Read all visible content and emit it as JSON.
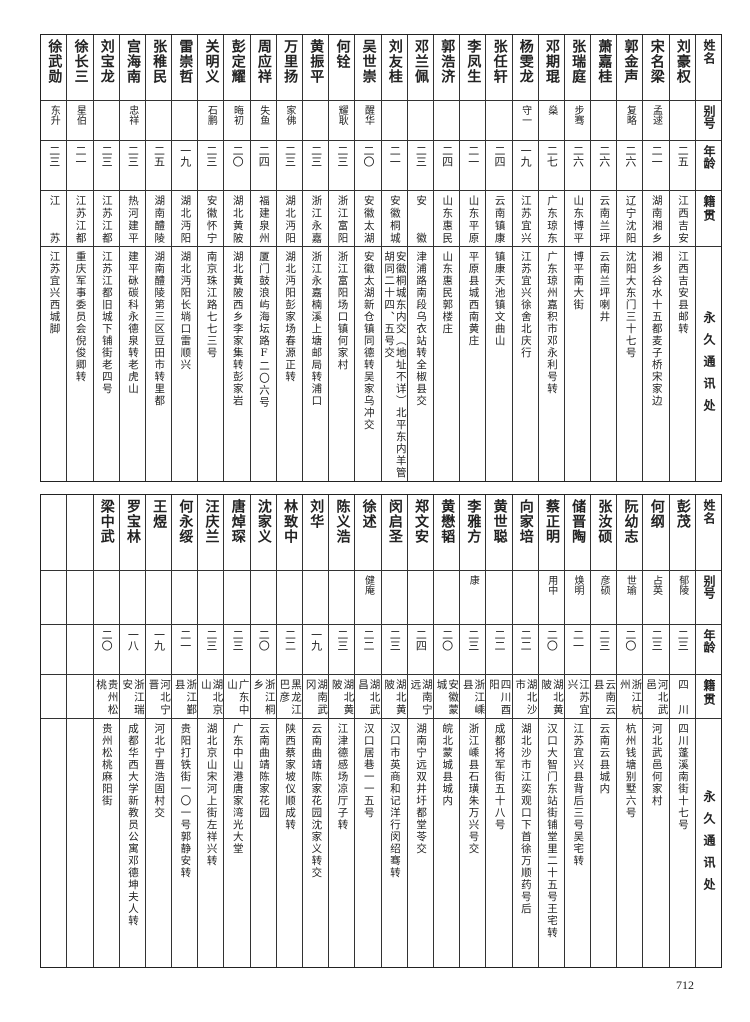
{
  "header": {
    "name": "姓名",
    "alias": "别号",
    "age": "年龄",
    "origin": "籍贯",
    "address": "永久通讯处"
  },
  "top_table": [
    {
      "name": "刘豪权",
      "alias": "",
      "age": "二五",
      "origin": "江西吉安",
      "address": "江西吉安县邮转"
    },
    {
      "name": "宋名梁",
      "alias": "孟逑",
      "age": "二一",
      "origin": "湖南湘乡",
      "address": "湘乡谷水十五都麦子桥宋家边"
    },
    {
      "name": "郭金声",
      "alias": "复略",
      "age": "二六",
      "origin": "辽宁沈阳",
      "address": "沈阳大东门三十七号"
    },
    {
      "name": "萧嘉桂",
      "alias": "",
      "age": "二六",
      "origin": "云南兰坪",
      "address": "云南兰坪喇井"
    },
    {
      "name": "张瑞庭",
      "alias": "步骞",
      "age": "二六",
      "origin": "山东博平",
      "address": "博平南大街"
    },
    {
      "name": "邓期琨",
      "alias": "燊",
      "age": "二七",
      "origin": "广东琼东",
      "address": "广东琼州嘉积市邓永利号转"
    },
    {
      "name": "杨雯龙",
      "alias": "守一",
      "age": "一九",
      "origin": "江苏宜兴",
      "address": "江苏宜兴徐舍北庆行"
    },
    {
      "name": "张任轩",
      "alias": "",
      "age": "二四",
      "origin": "云南镇康",
      "address": "镇康天池镇文曲山"
    },
    {
      "name": "李凤生",
      "alias": "",
      "age": "二一",
      "origin": "山东平原",
      "address": "平原县城西南黄庄"
    },
    {
      "name": "郭浩济",
      "alias": "",
      "age": "二四",
      "origin": "山东惠民",
      "address": "山东惠民郭楼庄"
    },
    {
      "name": "邓兰佩",
      "alias": "",
      "age": "二三",
      "origin": "安　　徽",
      "address": "津浦路南段乌衣站转全椒县交"
    },
    {
      "name": "刘友桂",
      "alias": "",
      "age": "二一",
      "origin": "安徽桐城",
      "address": "安徽桐城东内交（地址不详）北平东内羊管胡同二十四、五号交"
    },
    {
      "name": "吴世崇",
      "alias": "醒华",
      "age": "二〇",
      "origin": "安徽太湖",
      "address": "安徽太湖新仓镇同德转吴家乌冲交"
    },
    {
      "name": "何铨",
      "alias": "耀耿",
      "age": "二三",
      "origin": "浙江富阳",
      "address": "浙江富阳场口镇何家村"
    },
    {
      "name": "黄振平",
      "alias": "",
      "age": "二三",
      "origin": "浙江永嘉",
      "address": "浙江永嘉楠溪上塘邮局转浦口"
    },
    {
      "name": "万里扬",
      "alias": "家佛",
      "age": "二三",
      "origin": "湖北沔阳",
      "address": "湖北沔阳彭家场春源正转"
    },
    {
      "name": "周应祥",
      "alias": "失鱼",
      "age": "二四",
      "origin": "福建泉州",
      "address": "厦门鼓浪屿海坛路F二〇六号"
    },
    {
      "name": "彭定耀",
      "alias": "晦初",
      "age": "二〇",
      "origin": "湖北黄陂",
      "address": "湖北黄陂西乡李家集转彭家岩"
    },
    {
      "name": "关明义",
      "alias": "石鹏",
      "age": "二三",
      "origin": "安徽怀宁",
      "address": "南京珠江路七七三号"
    },
    {
      "name": "雷崇哲",
      "alias": "",
      "age": "一九",
      "origin": "湖北沔阳",
      "address": "湖北沔阳长埫口雷顺兴"
    },
    {
      "name": "张稚民",
      "alias": "",
      "age": "二五",
      "origin": "湖南醴陵",
      "address": "湖南醴陵第三区豆田市转里都"
    },
    {
      "name": "宫海南",
      "alias": "忠祥",
      "age": "二三",
      "origin": "热河建平",
      "address": "建平砯碳科永德泉转老虎山"
    },
    {
      "name": "刘宝龙",
      "alias": "",
      "age": "二三",
      "origin": "江苏江都",
      "address": "江苏江都旧城下铺街老四号"
    },
    {
      "name": "徐长三",
      "alias": "星伯",
      "age": "二一",
      "origin": "江苏江都",
      "address": "重庆军事委员会倪俊卿转"
    },
    {
      "name": "徐武勋",
      "alias": "东升",
      "age": "二三",
      "origin": "江　　苏",
      "address": "江苏宜兴西城脚"
    }
  ],
  "bottom_table": [
    {
      "name": "彭茂",
      "alias": "郁陵",
      "age": "二三",
      "origin": "四　川",
      "address": "四川蓬溪南街十七号"
    },
    {
      "name": "何纲",
      "alias": "占英",
      "age": "二三",
      "origin": "河北武邑",
      "address": "河北武邑何家村"
    },
    {
      "name": "阮幼志",
      "alias": "世瑜",
      "age": "二〇",
      "origin": "浙江杭州",
      "address": "杭州钱塘别墅六号"
    },
    {
      "name": "张汝硕",
      "alias": "彦硕",
      "age": "二三",
      "origin": "云南云县",
      "address": "云南云县城内"
    },
    {
      "name": "储晋陶",
      "alias": "焕明",
      "age": "二一",
      "origin": "江苏宜兴",
      "address": "江苏宜兴县背后三号吴宅转"
    },
    {
      "name": "蔡正明",
      "alias": "用中",
      "age": "二〇",
      "origin": "湖北黄陂",
      "address": "汉口大智门东站街铺堂里二十五号王宅转"
    },
    {
      "name": "向家培",
      "alias": "",
      "age": "二二",
      "origin": "湖北沙市",
      "address": "湖北沙市江奕观口下首徐万顺药号后"
    },
    {
      "name": "黄世聪",
      "alias": "",
      "age": "二二",
      "origin": "四川酉阳",
      "address": "成都将军街五十八号"
    },
    {
      "name": "李雅方",
      "alias": "康",
      "age": "二三",
      "origin": "浙江嵊县",
      "address": "浙江嵊县石璜朱万兴号交"
    },
    {
      "name": "黄懋韬",
      "alias": "",
      "age": "二〇",
      "origin": "安徽蒙城",
      "address": "皖北蒙城县城内"
    },
    {
      "name": "郑文安",
      "alias": "",
      "age": "二四",
      "origin": "湖南宁远",
      "address": "湖南宁远双井圩都堂苓交"
    },
    {
      "name": "闵启圣",
      "alias": "",
      "age": "二三",
      "origin": "湖北黄陂",
      "address": "汉口市英商和记洋行闵绍骞转"
    },
    {
      "name": "徐述",
      "alias": "健庵",
      "age": "二二",
      "origin": "湖北武昌",
      "address": "汉口居巷一一五号"
    },
    {
      "name": "陈义浩",
      "alias": "",
      "age": "二三",
      "origin": "湖北黄陂",
      "address": "江津德感场凉厅子转"
    },
    {
      "name": "刘华",
      "alias": "",
      "age": "一九",
      "origin": "湖南武冈",
      "address": "云南曲靖陈家花园沈家义转交"
    },
    {
      "name": "林致中",
      "alias": "",
      "age": "二二",
      "origin": "黑龙江巴彦",
      "address": "陕西蔡家坡仪顺成转"
    },
    {
      "name": "沈家义",
      "alias": "",
      "age": "二〇",
      "origin": "浙江桐乡",
      "address": "云南曲靖陈家花园"
    },
    {
      "name": "唐焯琛",
      "alias": "",
      "age": "二三",
      "origin": "广东中山",
      "address": "广东中山港唐家湾光大堂"
    },
    {
      "name": "汪庆兰",
      "alias": "",
      "age": "二三",
      "origin": "湖北京山",
      "address": "湖北京山宋河上街左祥兴转"
    },
    {
      "name": "何永绥",
      "alias": "",
      "age": "二一",
      "origin": "浙江鄞县",
      "address": "贵阳打铁街一〇一号郭静安转"
    },
    {
      "name": "王煜",
      "alias": "",
      "age": "一九",
      "origin": "河北宁晋",
      "address": "河北宁晋浩固村交"
    },
    {
      "name": "罗宝林",
      "alias": "",
      "age": "一八",
      "origin": "浙江瑞安",
      "address": "成都华西大学新教员公寓邓德坤夫人转"
    },
    {
      "name": "梁中武",
      "alias": "",
      "age": "二〇",
      "origin": "贵州松桃",
      "address": "贵州松桃麻阳街"
    }
  ],
  "page_number": "712"
}
